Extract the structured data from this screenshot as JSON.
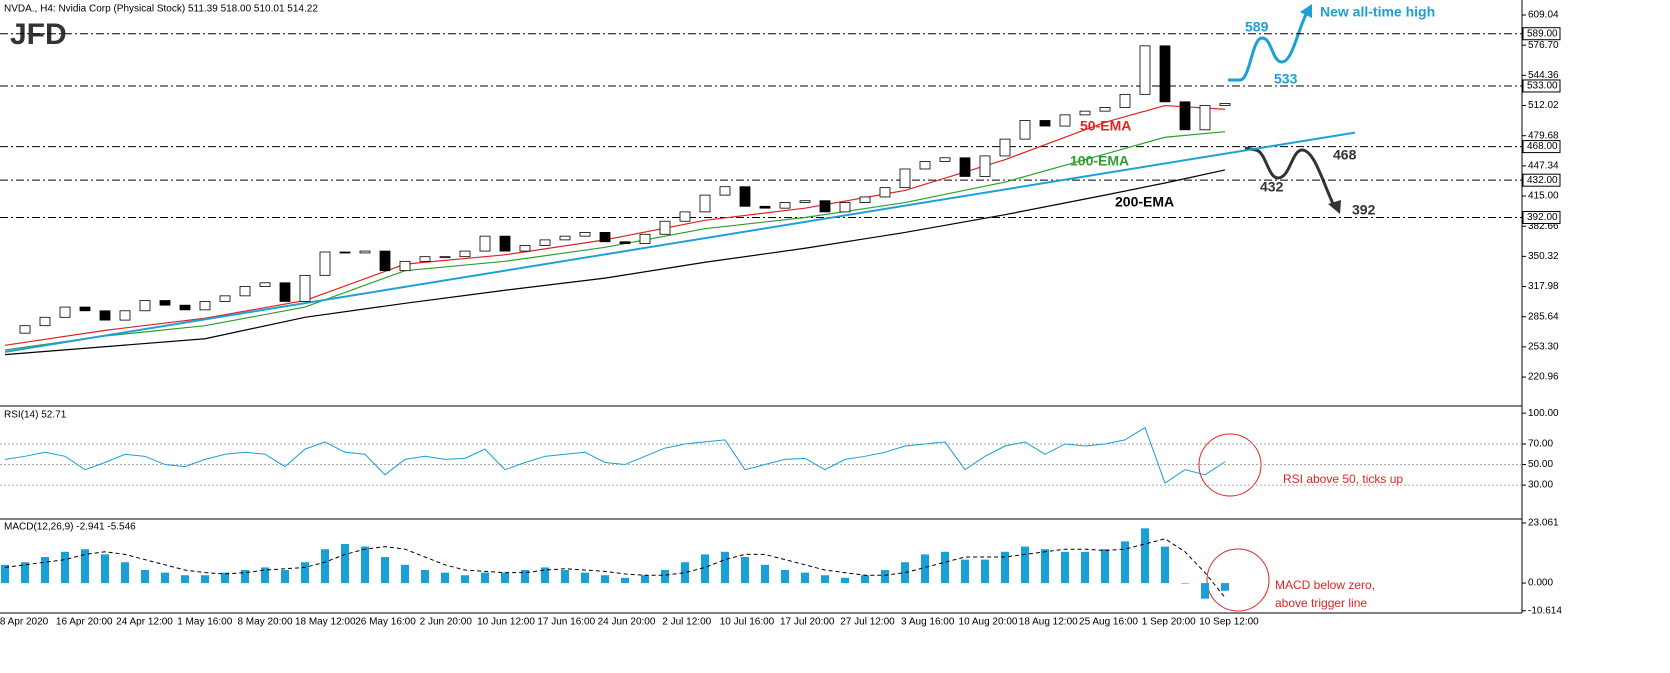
{
  "logo": "JFD",
  "chart_data": [
    {
      "type": "candlestick",
      "title": "NVDA., H4: Nvidia Corp (Physical Stock) 511.39 518.00 510.01 514.22",
      "values": [
        268,
        276,
        285,
        296,
        292,
        282,
        292,
        303,
        298,
        293,
        302,
        308,
        318,
        322,
        302,
        330,
        355,
        354,
        356,
        335,
        345,
        350,
        350,
        356,
        372,
        356,
        362,
        368,
        372,
        376,
        366,
        364,
        374,
        388,
        398,
        416,
        425,
        404,
        402,
        408,
        410,
        398,
        408,
        414,
        424,
        444,
        452,
        456,
        436,
        458,
        476,
        496,
        490,
        502,
        506,
        510,
        524,
        576,
        516,
        486,
        512,
        514.22
      ],
      "up_color": "#ffffff",
      "down_color": "#000000",
      "lines": [
        {
          "name": "50-EMA",
          "color": "#e02424",
          "x": [
            0,
            5,
            10,
            15,
            20,
            25,
            30,
            35,
            40,
            45,
            50,
            55,
            58,
            61
          ],
          "values": [
            255,
            271,
            284,
            303,
            342,
            352,
            368,
            389,
            402,
            421,
            454,
            494,
            512,
            508
          ]
        },
        {
          "name": "100-EMA",
          "color": "#2e9e2e",
          "x": [
            0,
            5,
            10,
            15,
            20,
            25,
            30,
            35,
            40,
            45,
            50,
            55,
            58,
            61
          ],
          "values": [
            250,
            265,
            276,
            296,
            335,
            345,
            360,
            380,
            392,
            408,
            430,
            460,
            478,
            484
          ]
        },
        {
          "name": "200-EMA",
          "color": "#000000",
          "x": [
            0,
            10,
            15,
            20,
            25,
            30,
            35,
            40,
            45,
            50,
            55,
            58,
            61
          ],
          "values": [
            245,
            262,
            285,
            300,
            314,
            327,
            344,
            359,
            376,
            395,
            416,
            429,
            443
          ]
        },
        {
          "color": "#1ea0d8",
          "x": [
            0,
            67.5
          ],
          "values": [
            248,
            483
          ]
        }
      ],
      "levels": [
        {
          "value": 589,
          "label": "589.00"
        },
        {
          "value": 533,
          "label": "533.00"
        },
        {
          "value": 468,
          "label": "468.00"
        },
        {
          "value": 432,
          "label": "432.00"
        },
        {
          "value": 392,
          "label": "392.00"
        }
      ],
      "annotations": [
        "589",
        "533",
        "New all-time high",
        "468",
        "432",
        "392"
      ],
      "x_labels": [
        "8 Apr 2020",
        "16 Apr 20:00",
        "24 Apr 12:00",
        "1 May 16:00",
        "8 May 20:00",
        "18 May 12:00",
        "26 May 16:00",
        "2 Jun 20:00",
        "10 Jun 12:00",
        "17 Jun 16:00",
        "24 Jun 20:00",
        "2 Jul 12:00",
        "10 Jul 16:00",
        "17 Jul 20:00",
        "27 Jul 12:00",
        "3 Aug 16:00",
        "10 Aug 20:00",
        "18 Aug 12:00",
        "25 Aug 16:00",
        "1 Sep 20:00",
        "10 Sep 12:00"
      ],
      "ylim": [
        191,
        623
      ],
      "yticks": [
        {
          "value": 609.04,
          "label": "609.04"
        },
        {
          "value": 576.7,
          "label": "576.70"
        },
        {
          "value": 544.36,
          "label": "544.36"
        },
        {
          "value": 512.02,
          "label": "512.02"
        },
        {
          "value": 479.68,
          "label": "479.68"
        },
        {
          "value": 447.34,
          "label": "447.34"
        },
        {
          "value": 415,
          "label": "415.00"
        },
        {
          "value": 382.66,
          "label": "382.66"
        },
        {
          "value": 350.32,
          "label": "350.32"
        },
        {
          "value": 317.98,
          "label": "317.98"
        },
        {
          "value": 285.64,
          "label": "285.64"
        },
        {
          "value": 253.3,
          "label": "253.30"
        },
        {
          "value": 220.96,
          "label": "220.96"
        }
      ]
    },
    {
      "type": "line",
      "title": "RSI(14) 52.71",
      "color": "#1a9fd6",
      "values": [
        55,
        58,
        62,
        58,
        45,
        52,
        60,
        58,
        50,
        48,
        55,
        60,
        62,
        60,
        48,
        65,
        72,
        62,
        60,
        40,
        55,
        58,
        55,
        56,
        65,
        45,
        52,
        58,
        60,
        62,
        52,
        50,
        58,
        66,
        70,
        72,
        74,
        45,
        50,
        55,
        56,
        45,
        55,
        58,
        62,
        68,
        70,
        72,
        45,
        58,
        68,
        72,
        60,
        70,
        68,
        70,
        74,
        86,
        32,
        45,
        40,
        52.71
      ],
      "ylim": [
        -2,
        105
      ],
      "yticks": [
        {
          "value": 100,
          "label": "100.00"
        },
        {
          "value": 70,
          "label": "70.00"
        },
        {
          "value": 50,
          "label": "50.00"
        },
        {
          "value": 30,
          "label": "30.00"
        }
      ],
      "annotation": "RSI above 50, ticks up"
    },
    {
      "type": "macd",
      "title": "MACD(12,26,9) -2.941 -5.546",
      "color": "#1a9fd6",
      "values": [
        7,
        8,
        10,
        12,
        13,
        11,
        8,
        5,
        4,
        3,
        3,
        4,
        5,
        6,
        5,
        8,
        13,
        15,
        14,
        10,
        7,
        5,
        4,
        3,
        4,
        4,
        5,
        6,
        5,
        4,
        3,
        2,
        3,
        5,
        8,
        11,
        12,
        10,
        7,
        5,
        4,
        3,
        2,
        3,
        5,
        8,
        11,
        12,
        9,
        9,
        12,
        14,
        13,
        12,
        12,
        13,
        16,
        21,
        14,
        0,
        -6,
        -2.941
      ],
      "signal": [
        6,
        7,
        8,
        9,
        11,
        12,
        11,
        9,
        7,
        5,
        4,
        3.5,
        4,
        5,
        5.5,
        6,
        8,
        11,
        13,
        14,
        13,
        10,
        7,
        5,
        4.5,
        4,
        4,
        5,
        5.5,
        5,
        4.5,
        3.5,
        3,
        3,
        4,
        6,
        9,
        11,
        11,
        9,
        7,
        5,
        4,
        3,
        3,
        4,
        6,
        8,
        10,
        10,
        10,
        11,
        12,
        13,
        13,
        12.5,
        13,
        15,
        17,
        12,
        4,
        -5.546
      ],
      "signal_color": "#000000",
      "ylim": [
        -11.1,
        24.2
      ],
      "yticks": [
        23.061,
        {
          "value": 0,
          "label": "0.000"
        },
        -10.614
      ],
      "annotation": [
        "MACD below zero,",
        "above trigger line"
      ]
    }
  ]
}
